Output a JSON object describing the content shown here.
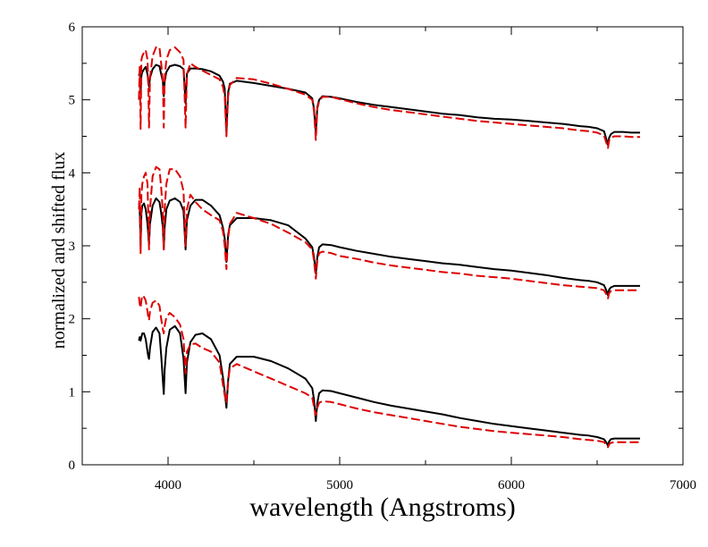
{
  "chart_data": {
    "type": "line",
    "title": "",
    "xlabel": "wavelength (Angstroms)",
    "ylabel": "normalized and shifted flux",
    "xlim": [
      3500,
      7000
    ],
    "ylim": [
      0,
      6
    ],
    "xticks": [
      4000,
      5000,
      6000,
      7000
    ],
    "xtick_labels": [
      "4000",
      "5000",
      "6000",
      "7000"
    ],
    "yticks": [
      0,
      1,
      2,
      3,
      4,
      5,
      6
    ],
    "ytick_labels": [
      "0",
      "1",
      "2",
      "3",
      "4",
      "5",
      "6"
    ],
    "grid": false,
    "legend": "none",
    "colors": {
      "observed": "#000000",
      "model": "#dd0000",
      "frame": "#000000"
    },
    "series": [
      {
        "name": "top-observed",
        "style": "solid",
        "color": "#000000",
        "x": [
          3830,
          3835,
          3840,
          3845,
          3850,
          3860,
          3870,
          3880,
          3885,
          3889,
          3895,
          3910,
          3930,
          3950,
          3960,
          3970,
          3975,
          3980,
          3990,
          4010,
          4040,
          4070,
          4090,
          4102,
          4110,
          4130,
          4160,
          4200,
          4250,
          4300,
          4320,
          4330,
          4340,
          4350,
          4360,
          4400,
          4500,
          4600,
          4700,
          4800,
          4840,
          4850,
          4861,
          4870,
          4880,
          4900,
          4950,
          5000,
          5100,
          5200,
          5300,
          5400,
          5500,
          5600,
          5700,
          5800,
          5900,
          6000,
          6100,
          6200,
          6300,
          6400,
          6450,
          6500,
          6540,
          6555,
          6563,
          6570,
          6580,
          6600,
          6650,
          6700,
          6750
        ],
        "y": [
          5.33,
          5.38,
          5.1,
          5.33,
          5.38,
          5.42,
          5.45,
          5.35,
          5.25,
          5.18,
          5.3,
          5.42,
          5.48,
          5.46,
          5.35,
          5.25,
          5.05,
          5.25,
          5.38,
          5.46,
          5.48,
          5.46,
          5.42,
          4.95,
          5.36,
          5.43,
          5.43,
          5.42,
          5.39,
          5.33,
          5.25,
          5.15,
          4.55,
          5.1,
          5.22,
          5.26,
          5.23,
          5.19,
          5.15,
          5.1,
          5.02,
          4.88,
          4.55,
          4.9,
          5.0,
          5.05,
          5.04,
          5.02,
          4.97,
          4.93,
          4.9,
          4.87,
          4.84,
          4.81,
          4.79,
          4.76,
          4.74,
          4.73,
          4.71,
          4.69,
          4.67,
          4.64,
          4.63,
          4.61,
          4.57,
          4.45,
          4.38,
          4.48,
          4.53,
          4.56,
          4.56,
          4.55,
          4.55
        ]
      },
      {
        "name": "top-model",
        "style": "dashed",
        "color": "#dd0000",
        "x": [
          3830,
          3835,
          3840,
          3845,
          3850,
          3860,
          3870,
          3880,
          3885,
          3889,
          3895,
          3910,
          3930,
          3950,
          3960,
          3970,
          3975,
          3980,
          3990,
          4010,
          4040,
          4070,
          4090,
          4102,
          4110,
          4130,
          4160,
          4200,
          4250,
          4300,
          4320,
          4330,
          4340,
          4350,
          4360,
          4400,
          4500,
          4600,
          4700,
          4800,
          4840,
          4850,
          4861,
          4870,
          4880,
          4900,
          4950,
          5000,
          5100,
          5200,
          5300,
          5400,
          5500,
          5600,
          5700,
          5800,
          5900,
          6000,
          6100,
          6200,
          6300,
          6400,
          6450,
          6500,
          6540,
          6555,
          6563,
          6570,
          6580,
          6600,
          6650,
          6700,
          6750
        ],
        "y": [
          5.0,
          5.45,
          4.6,
          5.55,
          5.6,
          5.65,
          5.68,
          5.55,
          5.2,
          4.62,
          5.3,
          5.6,
          5.72,
          5.72,
          5.5,
          5.25,
          4.62,
          5.3,
          5.55,
          5.68,
          5.72,
          5.65,
          5.55,
          4.62,
          5.35,
          5.5,
          5.45,
          5.4,
          5.34,
          5.28,
          5.18,
          5.05,
          4.5,
          5.05,
          5.2,
          5.3,
          5.28,
          5.22,
          5.15,
          5.07,
          5.0,
          4.85,
          4.45,
          4.88,
          4.98,
          5.04,
          5.04,
          5.01,
          4.95,
          4.9,
          4.86,
          4.83,
          4.8,
          4.77,
          4.74,
          4.71,
          4.69,
          4.67,
          4.65,
          4.63,
          4.61,
          4.58,
          4.57,
          4.55,
          4.51,
          4.4,
          4.34,
          4.44,
          4.48,
          4.5,
          4.5,
          4.49,
          4.49
        ]
      },
      {
        "name": "middle-observed",
        "style": "solid",
        "color": "#000000",
        "x": [
          3830,
          3835,
          3840,
          3845,
          3850,
          3860,
          3870,
          3880,
          3885,
          3889,
          3895,
          3910,
          3930,
          3950,
          3960,
          3970,
          3975,
          3980,
          3990,
          4010,
          4040,
          4070,
          4090,
          4102,
          4110,
          4130,
          4160,
          4200,
          4250,
          4300,
          4320,
          4330,
          4340,
          4350,
          4360,
          4400,
          4500,
          4600,
          4700,
          4800,
          4840,
          4850,
          4861,
          4870,
          4880,
          4900,
          4950,
          5000,
          5100,
          5200,
          5300,
          5400,
          5500,
          5600,
          5700,
          5800,
          5900,
          6000,
          6100,
          6200,
          6300,
          6400,
          6450,
          6500,
          6540,
          6555,
          6563,
          6570,
          6580,
          6600,
          6650,
          6700,
          6750
        ],
        "y": [
          3.5,
          3.5,
          3.0,
          3.45,
          3.55,
          3.58,
          3.5,
          3.3,
          3.15,
          3.02,
          3.3,
          3.55,
          3.65,
          3.6,
          3.45,
          3.25,
          2.95,
          3.25,
          3.5,
          3.62,
          3.65,
          3.6,
          3.48,
          2.95,
          3.35,
          3.55,
          3.63,
          3.63,
          3.55,
          3.42,
          3.25,
          3.1,
          2.78,
          3.15,
          3.28,
          3.38,
          3.38,
          3.35,
          3.28,
          3.1,
          2.98,
          2.85,
          2.62,
          2.85,
          2.98,
          3.02,
          3.01,
          2.98,
          2.93,
          2.89,
          2.85,
          2.82,
          2.79,
          2.76,
          2.74,
          2.71,
          2.68,
          2.66,
          2.63,
          2.6,
          2.56,
          2.53,
          2.52,
          2.5,
          2.46,
          2.38,
          2.32,
          2.4,
          2.43,
          2.45,
          2.45,
          2.45,
          2.45
        ]
      },
      {
        "name": "middle-model",
        "style": "dashed",
        "color": "#dd0000",
        "x": [
          3830,
          3835,
          3840,
          3845,
          3850,
          3860,
          3870,
          3880,
          3885,
          3889,
          3895,
          3910,
          3930,
          3950,
          3960,
          3970,
          3975,
          3980,
          3990,
          4010,
          4040,
          4070,
          4090,
          4102,
          4110,
          4130,
          4160,
          4200,
          4250,
          4300,
          4320,
          4330,
          4340,
          4350,
          4360,
          4400,
          4500,
          4600,
          4700,
          4800,
          4840,
          4850,
          4861,
          4870,
          4880,
          4900,
          4950,
          5000,
          5100,
          5200,
          5300,
          5400,
          5500,
          5600,
          5700,
          5800,
          5900,
          6000,
          6100,
          6200,
          6300,
          6400,
          6450,
          6500,
          6540,
          6555,
          6563,
          6570,
          6580,
          6600,
          6650,
          6700,
          6750
        ],
        "y": [
          3.5,
          3.8,
          2.9,
          3.7,
          3.85,
          3.95,
          4.0,
          3.85,
          3.4,
          2.95,
          3.5,
          3.95,
          4.08,
          4.05,
          3.8,
          3.45,
          2.95,
          3.5,
          3.85,
          4.05,
          4.05,
          3.95,
          3.75,
          3.0,
          3.5,
          3.7,
          3.6,
          3.5,
          3.42,
          3.35,
          3.2,
          3.0,
          2.68,
          3.1,
          3.3,
          3.45,
          3.38,
          3.3,
          3.18,
          3.05,
          2.95,
          2.8,
          2.55,
          2.8,
          2.9,
          2.92,
          2.9,
          2.86,
          2.82,
          2.77,
          2.73,
          2.7,
          2.67,
          2.64,
          2.62,
          2.59,
          2.57,
          2.55,
          2.52,
          2.49,
          2.46,
          2.44,
          2.43,
          2.42,
          2.39,
          2.33,
          2.28,
          2.35,
          2.38,
          2.39,
          2.39,
          2.39,
          2.39
        ]
      },
      {
        "name": "bottom-observed",
        "style": "solid",
        "color": "#000000",
        "x": [
          3830,
          3835,
          3840,
          3845,
          3850,
          3860,
          3870,
          3880,
          3885,
          3889,
          3895,
          3910,
          3930,
          3950,
          3960,
          3970,
          3975,
          3980,
          3990,
          4010,
          4040,
          4070,
          4090,
          4102,
          4110,
          4130,
          4160,
          4200,
          4250,
          4300,
          4320,
          4330,
          4340,
          4350,
          4360,
          4400,
          4500,
          4600,
          4700,
          4800,
          4840,
          4850,
          4861,
          4870,
          4880,
          4900,
          4950,
          5000,
          5100,
          5200,
          5300,
          5400,
          5500,
          5600,
          5700,
          5800,
          5900,
          6000,
          6100,
          6200,
          6300,
          6400,
          6450,
          6500,
          6540,
          6555,
          6563,
          6570,
          6580,
          6600,
          6650,
          6700,
          6750
        ],
        "y": [
          1.7,
          1.75,
          1.7,
          1.75,
          1.8,
          1.8,
          1.72,
          1.55,
          1.48,
          1.45,
          1.6,
          1.82,
          1.88,
          1.8,
          1.5,
          1.15,
          0.97,
          1.3,
          1.6,
          1.85,
          1.9,
          1.8,
          1.45,
          0.98,
          1.4,
          1.68,
          1.78,
          1.8,
          1.72,
          1.5,
          1.2,
          1.0,
          0.78,
          1.15,
          1.38,
          1.48,
          1.48,
          1.42,
          1.32,
          1.18,
          1.05,
          0.9,
          0.6,
          0.85,
          0.98,
          1.02,
          1.01,
          0.98,
          0.92,
          0.86,
          0.81,
          0.77,
          0.73,
          0.69,
          0.64,
          0.6,
          0.56,
          0.53,
          0.5,
          0.47,
          0.44,
          0.41,
          0.4,
          0.38,
          0.35,
          0.3,
          0.26,
          0.32,
          0.35,
          0.36,
          0.36,
          0.36,
          0.36
        ]
      },
      {
        "name": "bottom-model",
        "style": "dashed",
        "color": "#dd0000",
        "x": [
          3830,
          3835,
          3840,
          3845,
          3850,
          3860,
          3870,
          3880,
          3885,
          3889,
          3895,
          3910,
          3930,
          3950,
          3960,
          3970,
          3975,
          3980,
          3990,
          4010,
          4040,
          4070,
          4090,
          4102,
          4110,
          4130,
          4160,
          4200,
          4250,
          4300,
          4320,
          4330,
          4340,
          4350,
          4360,
          4400,
          4500,
          4600,
          4700,
          4800,
          4840,
          4850,
          4861,
          4870,
          4880,
          4900,
          4950,
          5000,
          5100,
          5200,
          5300,
          5400,
          5500,
          5600,
          5700,
          5800,
          5900,
          6000,
          6100,
          6200,
          6300,
          6400,
          6450,
          6500,
          6540,
          6555,
          6563,
          6570,
          6580,
          6600,
          6650,
          6700,
          6750
        ],
        "y": [
          2.3,
          2.2,
          2.15,
          2.25,
          2.32,
          2.3,
          2.25,
          2.1,
          2.02,
          1.98,
          2.1,
          2.22,
          2.25,
          2.18,
          2.0,
          1.85,
          1.8,
          1.9,
          2.02,
          2.08,
          2.02,
          1.92,
          1.72,
          1.25,
          1.55,
          1.65,
          1.66,
          1.6,
          1.55,
          1.4,
          1.1,
          0.95,
          0.85,
          1.15,
          1.32,
          1.38,
          1.28,
          1.18,
          1.08,
          0.98,
          0.92,
          0.8,
          0.68,
          0.78,
          0.85,
          0.87,
          0.86,
          0.83,
          0.77,
          0.72,
          0.68,
          0.64,
          0.6,
          0.56,
          0.52,
          0.49,
          0.46,
          0.44,
          0.42,
          0.4,
          0.38,
          0.35,
          0.34,
          0.33,
          0.31,
          0.27,
          0.24,
          0.28,
          0.3,
          0.31,
          0.31,
          0.31,
          0.31
        ]
      }
    ]
  }
}
